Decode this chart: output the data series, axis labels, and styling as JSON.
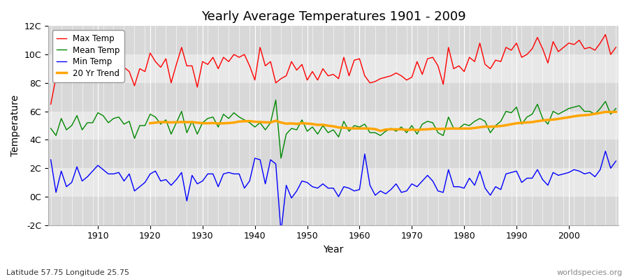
{
  "title": "Yearly Average Temperatures 1901 - 2009",
  "xlabel": "Year",
  "ylabel": "Temperature",
  "subtitle": "Latitude 57.75 Longitude 25.75",
  "watermark": "worldspecies.org",
  "years": [
    1901,
    1902,
    1903,
    1904,
    1905,
    1906,
    1907,
    1908,
    1909,
    1910,
    1911,
    1912,
    1913,
    1914,
    1915,
    1916,
    1917,
    1918,
    1919,
    1920,
    1921,
    1922,
    1923,
    1924,
    1925,
    1926,
    1927,
    1928,
    1929,
    1930,
    1931,
    1932,
    1933,
    1934,
    1935,
    1936,
    1937,
    1938,
    1939,
    1940,
    1941,
    1942,
    1943,
    1944,
    1945,
    1946,
    1947,
    1948,
    1949,
    1950,
    1951,
    1952,
    1953,
    1954,
    1955,
    1956,
    1957,
    1958,
    1959,
    1960,
    1961,
    1962,
    1963,
    1964,
    1965,
    1966,
    1967,
    1968,
    1969,
    1970,
    1971,
    1972,
    1973,
    1974,
    1975,
    1976,
    1977,
    1978,
    1979,
    1980,
    1981,
    1982,
    1983,
    1984,
    1985,
    1986,
    1987,
    1988,
    1989,
    1990,
    1991,
    1992,
    1993,
    1994,
    1995,
    1996,
    1997,
    1998,
    1999,
    2000,
    2001,
    2002,
    2003,
    2004,
    2005,
    2006,
    2007,
    2008,
    2009
  ],
  "max_temp": [
    6.5,
    8.4,
    9.2,
    8.8,
    9.1,
    9.3,
    8.5,
    9.0,
    8.7,
    10.0,
    9.4,
    8.6,
    9.3,
    9.5,
    9.1,
    8.8,
    7.8,
    9.0,
    8.8,
    10.1,
    9.5,
    9.1,
    9.7,
    8.0,
    9.3,
    10.5,
    9.2,
    9.2,
    7.7,
    9.5,
    9.3,
    9.8,
    9.0,
    9.8,
    9.5,
    10.0,
    9.8,
    10.0,
    9.2,
    8.2,
    10.5,
    9.2,
    9.5,
    8.0,
    8.3,
    8.5,
    9.5,
    8.9,
    9.3,
    8.2,
    8.8,
    8.2,
    9.0,
    8.5,
    8.6,
    8.3,
    9.8,
    8.5,
    9.6,
    9.7,
    8.5,
    8.0,
    8.1,
    8.3,
    8.4,
    8.5,
    8.7,
    8.5,
    8.2,
    8.4,
    9.5,
    8.6,
    9.7,
    9.8,
    9.2,
    7.9,
    10.5,
    9.0,
    9.2,
    8.8,
    9.8,
    9.5,
    10.8,
    9.3,
    9.0,
    9.6,
    9.5,
    10.5,
    10.3,
    10.8,
    9.8,
    10.0,
    10.4,
    11.2,
    10.4,
    9.4,
    10.9,
    10.2,
    10.5,
    10.8,
    10.7,
    11.0,
    10.4,
    10.5,
    10.3,
    10.8,
    11.4,
    10.0,
    10.5
  ],
  "mean_temp": [
    4.8,
    4.3,
    5.5,
    4.7,
    5.0,
    5.7,
    4.7,
    5.2,
    5.2,
    5.9,
    5.7,
    5.2,
    5.5,
    5.6,
    5.1,
    5.3,
    4.1,
    5.0,
    5.0,
    5.8,
    5.6,
    5.1,
    5.4,
    4.4,
    5.2,
    6.0,
    4.5,
    5.3,
    4.4,
    5.2,
    5.5,
    5.6,
    4.9,
    5.8,
    5.5,
    5.9,
    5.6,
    5.4,
    5.2,
    4.9,
    5.2,
    4.7,
    5.2,
    6.8,
    2.7,
    4.4,
    4.8,
    4.7,
    5.4,
    4.6,
    4.9,
    4.4,
    5.0,
    4.5,
    4.7,
    4.2,
    5.3,
    4.6,
    5.0,
    4.9,
    5.1,
    4.5,
    4.5,
    4.3,
    4.6,
    4.8,
    4.6,
    4.9,
    4.5,
    5.0,
    4.4,
    5.1,
    5.3,
    5.2,
    4.5,
    4.3,
    5.6,
    4.8,
    4.8,
    5.1,
    5.0,
    5.3,
    5.5,
    5.3,
    4.5,
    5.0,
    5.3,
    6.0,
    5.9,
    6.3,
    5.1,
    5.6,
    5.8,
    6.5,
    5.5,
    5.1,
    6.0,
    5.8,
    6.0,
    6.2,
    6.3,
    6.4,
    6.0,
    6.0,
    5.8,
    6.2,
    6.7,
    5.8,
    6.2
  ],
  "min_temp": [
    2.6,
    0.3,
    1.8,
    0.7,
    1.0,
    2.1,
    1.1,
    1.4,
    1.8,
    2.2,
    1.9,
    1.6,
    1.6,
    1.7,
    1.1,
    1.6,
    0.4,
    0.7,
    1.0,
    1.6,
    1.8,
    1.1,
    1.2,
    0.8,
    1.2,
    1.7,
    -0.3,
    1.5,
    0.9,
    1.1,
    1.6,
    1.6,
    0.7,
    1.6,
    1.7,
    1.6,
    1.6,
    0.6,
    1.1,
    2.7,
    2.6,
    0.9,
    2.6,
    2.3,
    -2.5,
    0.8,
    -0.1,
    0.4,
    1.1,
    1.0,
    0.7,
    0.6,
    0.9,
    0.6,
    0.6,
    0.0,
    0.7,
    0.6,
    0.4,
    0.5,
    3.0,
    0.8,
    0.1,
    0.4,
    0.2,
    0.5,
    0.9,
    0.3,
    0.4,
    0.9,
    0.7,
    1.1,
    1.5,
    1.1,
    0.4,
    0.3,
    1.9,
    0.7,
    0.7,
    0.6,
    1.3,
    0.8,
    1.8,
    0.6,
    0.1,
    0.7,
    0.5,
    1.6,
    1.7,
    1.8,
    1.0,
    1.3,
    1.3,
    1.9,
    1.2,
    0.8,
    1.7,
    1.5,
    1.6,
    1.7,
    1.9,
    1.8,
    1.6,
    1.7,
    1.4,
    1.9,
    3.2,
    2.0,
    2.5
  ],
  "ylim": [
    -2,
    12
  ],
  "yticks": [
    -2,
    0,
    2,
    4,
    6,
    8,
    10,
    12
  ],
  "ytick_labels": [
    "-2C",
    "0C",
    "2C",
    "4C",
    "6C",
    "8C",
    "10C",
    "12C"
  ],
  "bg_color": "#ffffff",
  "plot_bg_color": "#e0e0e0",
  "grid_color": "#ffffff",
  "band_colors": [
    "#d8d8d8",
    "#e8e8e8"
  ],
  "max_color": "#ff0000",
  "mean_color": "#008800",
  "min_color": "#0000ff",
  "trend_color": "#ffa500",
  "linewidth": 1.0,
  "trend_linewidth": 2.5
}
